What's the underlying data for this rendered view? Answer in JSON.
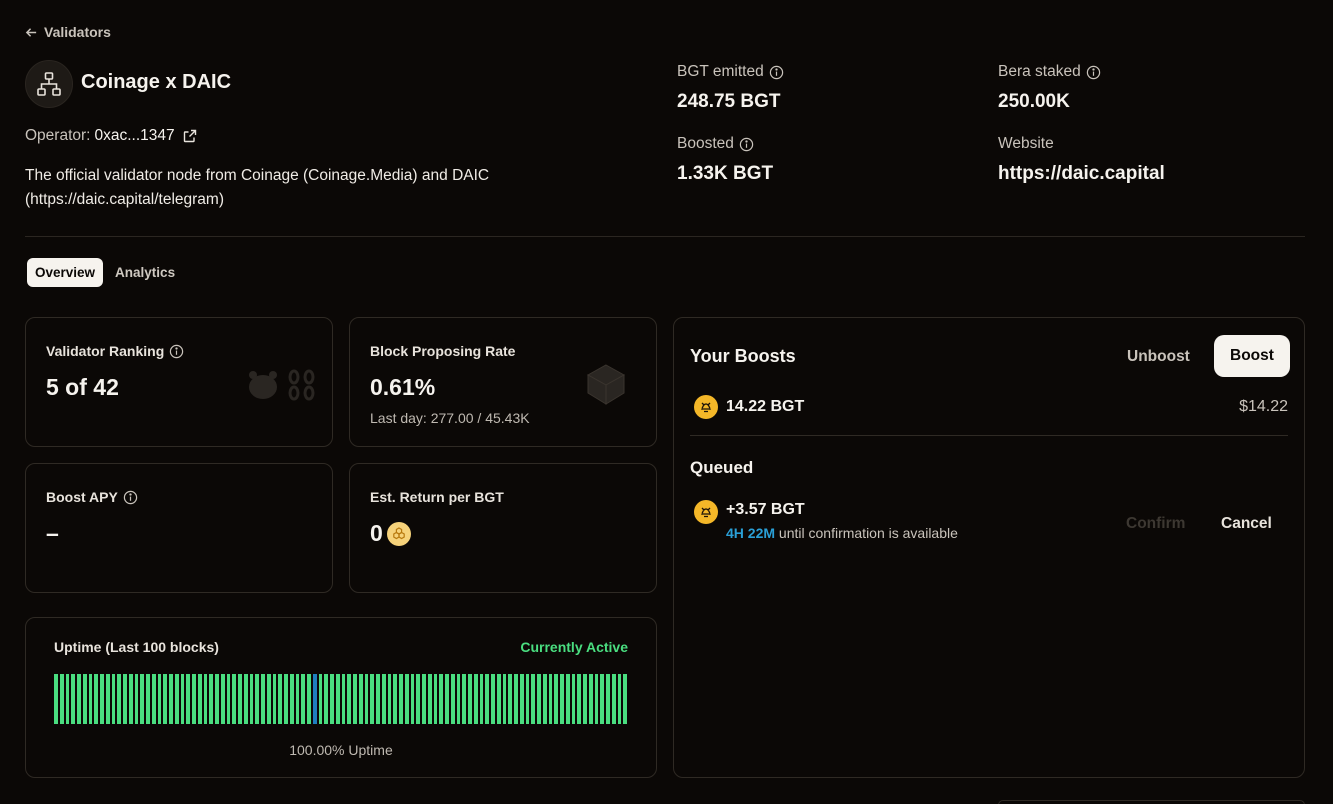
{
  "header": {
    "back_label": "Validators",
    "validator_name": "Coinage x DAIC",
    "operator_label": "Operator:",
    "operator_address": "0xac...1347",
    "description_line1": "The official validator node from Coinage (Coinage.Media) and DAIC",
    "description_line2": "(https://daic.capital/telegram)"
  },
  "stats": {
    "bgt_emitted_label": "BGT emitted",
    "bgt_emitted_value": "248.75 BGT",
    "bera_staked_label": "Bera staked",
    "bera_staked_value": "250.00K",
    "boosted_label": "Boosted",
    "boosted_value": "1.33K BGT",
    "website_label": "Website",
    "website_value": "https://daic.capital"
  },
  "tabs": [
    {
      "label": "Overview",
      "active": true
    },
    {
      "label": "Analytics",
      "active": false
    }
  ],
  "cards": {
    "ranking_label": "Validator Ranking",
    "ranking_value": "5 of 42",
    "proposing_label": "Block Proposing Rate",
    "proposing_value": "0.61%",
    "proposing_sub": "Last day: 277.00 / 45.43K",
    "apy_label": "Boost APY",
    "apy_value": "–",
    "return_label": "Est. Return per BGT",
    "return_value": "0"
  },
  "uptime": {
    "title": "Uptime (Last 100 blocks)",
    "status": "Currently Active",
    "status_color": "#4ade80",
    "footer": "100.00% Uptime",
    "bar_count": 100,
    "highlight_index": 45
  },
  "boosts": {
    "title": "Your Boosts",
    "unboost_label": "Unboost",
    "boost_label": "Boost",
    "amount": "14.22 BGT",
    "usd": "$14.22",
    "queued_title": "Queued",
    "queued_amount": "+3.57 BGT",
    "queued_time": "4H 22M",
    "queued_text": "until confirmation is available",
    "confirm_label": "Confirm",
    "cancel_label": "Cancel"
  },
  "colors": {
    "accent_blue": "#2a9fd6",
    "coin": "#f4b728"
  }
}
